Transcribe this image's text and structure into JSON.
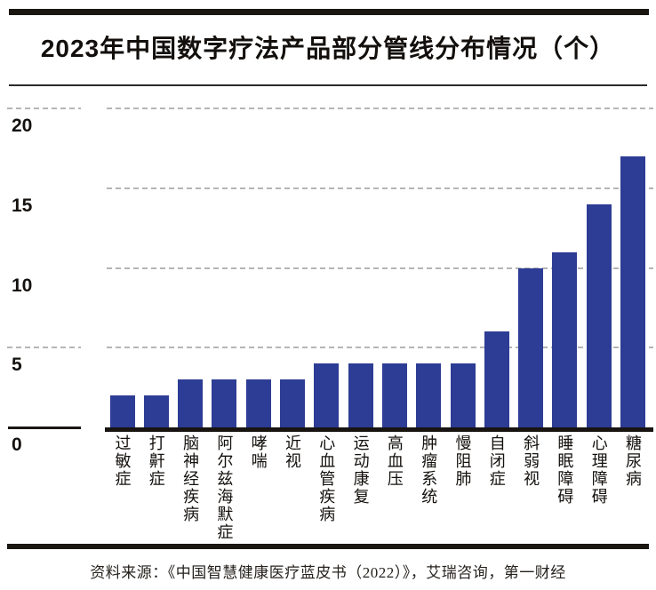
{
  "header": {
    "title": "2023年中国数字疗法产品部分管线分布情况（个）"
  },
  "chart_data": {
    "type": "bar",
    "title": "2023年中国数字疗法产品部分管线分布情况（个）",
    "categories": [
      "过敏症",
      "打鼾症",
      "脑神经疾病",
      "阿尔兹海默症",
      "哮喘",
      "近视",
      "心血管疾病",
      "运动康复",
      "高血压",
      "肿瘤系统",
      "慢阻肺",
      "自闭症",
      "斜弱视",
      "睡眠障碍",
      "心理障碍",
      "糖尿病"
    ],
    "values": [
      2,
      2,
      3,
      3,
      3,
      3,
      4,
      4,
      4,
      4,
      4,
      6,
      10,
      11,
      14,
      17
    ],
    "xlabel": "",
    "ylabel": "",
    "ylim": [
      0,
      20
    ],
    "yticks": [
      0,
      5,
      10,
      15,
      20
    ],
    "left_axis_tick_marks": [
      20,
      5,
      0
    ],
    "grid": "horizontal-dashed",
    "legend": "none",
    "bar_color": "#2d3c95"
  },
  "footer": {
    "source": "资料来源：《中国智慧健康医疗蓝皮书（2022）》，艾瑞咨询，第一财经"
  },
  "colors": {
    "bar": "#2d3c95",
    "rule_black": "#1a1713",
    "gridline_gray": "#b5b5b5",
    "title_text": "#120f0c",
    "source_text": "#26221e"
  }
}
